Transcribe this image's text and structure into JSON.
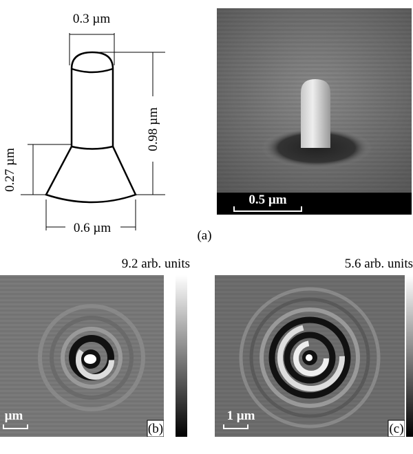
{
  "panel_a": {
    "schematic": {
      "top_width": "0.3 µm",
      "height": "0.98 µm",
      "base_height": "0.27 µm",
      "base_width": "0.6 µm"
    },
    "sem_scale": "0.5 µm",
    "label": "(a)"
  },
  "panel_b": {
    "colorbar_max": "9.2 arb. units",
    "scale": "µm",
    "label": "(b)"
  },
  "panel_c": {
    "colorbar_max": "5.6 arb. units",
    "scale": "1 µm",
    "label": "(c)"
  }
}
